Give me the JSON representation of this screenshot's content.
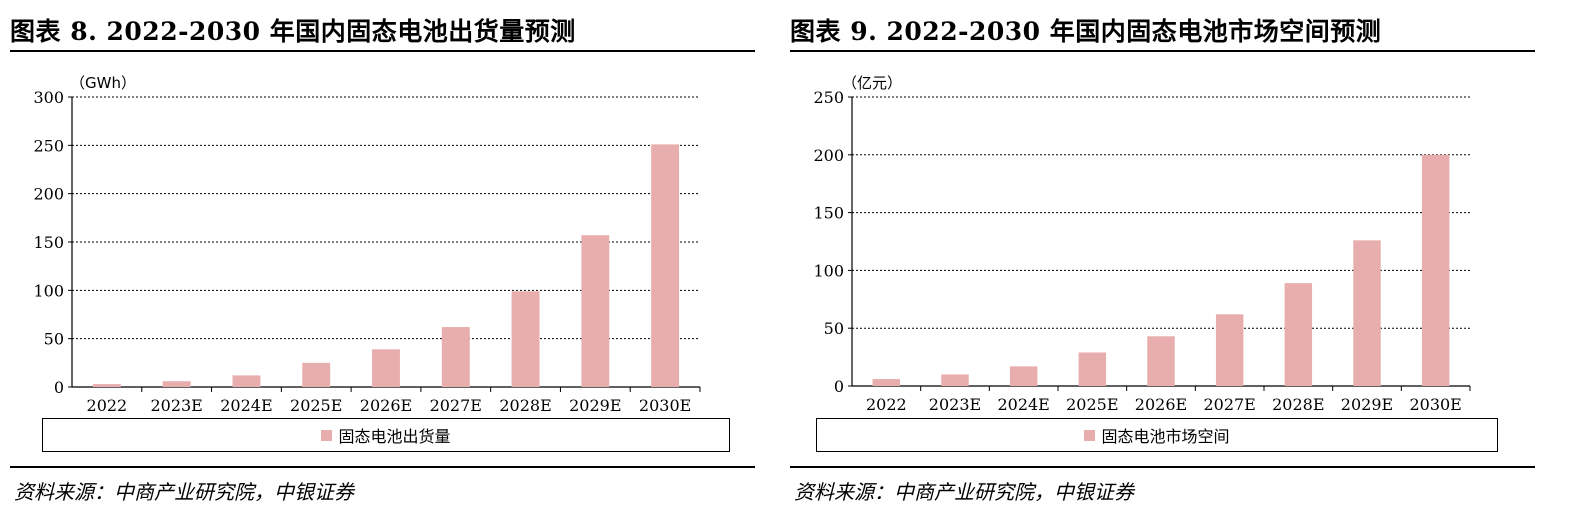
{
  "panels": [
    {
      "title": "图表 8. 2022-2030 年国内固态电池出货量预测",
      "source": "资料来源：中商产业研究院，中银证券"
    },
    {
      "title": "图表 9. 2022-2030 年国内固态电池市场空间预测",
      "source": "资料来源：中商产业研究院，中银证券"
    }
  ],
  "colors": {
    "bar": "#e8aeae",
    "grid": "#000000"
  },
  "chart_data": [
    {
      "type": "bar",
      "title": "",
      "unit": "（GWh）",
      "xlabel": "",
      "ylabel": "",
      "categories": [
        "2022",
        "2023E",
        "2024E",
        "2025E",
        "2026E",
        "2027E",
        "2028E",
        "2029E",
        "2030E"
      ],
      "series": [
        {
          "name": "固态电池出货量",
          "values": [
            3,
            6,
            12,
            25,
            39,
            62,
            99,
            157,
            251
          ]
        }
      ],
      "ylim": [
        0,
        300
      ],
      "yticks": [
        0,
        50,
        100,
        150,
        200,
        250,
        300
      ],
      "grid": "horizontal-dashed",
      "legend": "bottom"
    },
    {
      "type": "bar",
      "title": "",
      "unit": "（亿元）",
      "xlabel": "",
      "ylabel": "",
      "categories": [
        "2022",
        "2023E",
        "2024E",
        "2025E",
        "2026E",
        "2027E",
        "2028E",
        "2029E",
        "2030E"
      ],
      "series": [
        {
          "name": "固态电池市场空间",
          "values": [
            6,
            10,
            17,
            29,
            43,
            62,
            89,
            126,
            200
          ]
        }
      ],
      "ylim": [
        0,
        250
      ],
      "yticks": [
        0,
        50,
        100,
        150,
        200,
        250
      ],
      "grid": "horizontal-dashed",
      "legend": "bottom"
    }
  ]
}
